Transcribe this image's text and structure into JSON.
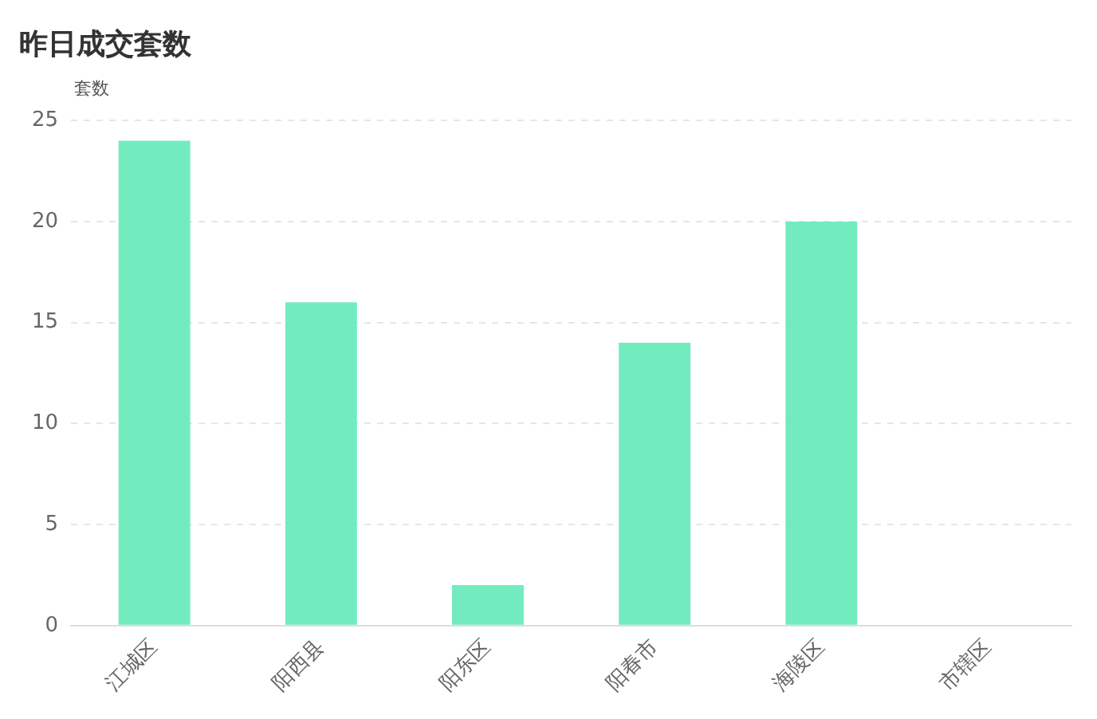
{
  "chart_data": {
    "type": "bar",
    "title": "昨日成交套数",
    "ylabel": "套数",
    "categories": [
      "江城区",
      "阳西县",
      "阳东区",
      "阳春市",
      "海陵区",
      "市辖区"
    ],
    "values": [
      24,
      16,
      2,
      14,
      20,
      0
    ],
    "color": "#72ecbf",
    "ylim": [
      0,
      25
    ],
    "yticks": [
      0,
      5,
      10,
      15,
      20,
      25
    ],
    "grid": "y",
    "legend": false
  }
}
